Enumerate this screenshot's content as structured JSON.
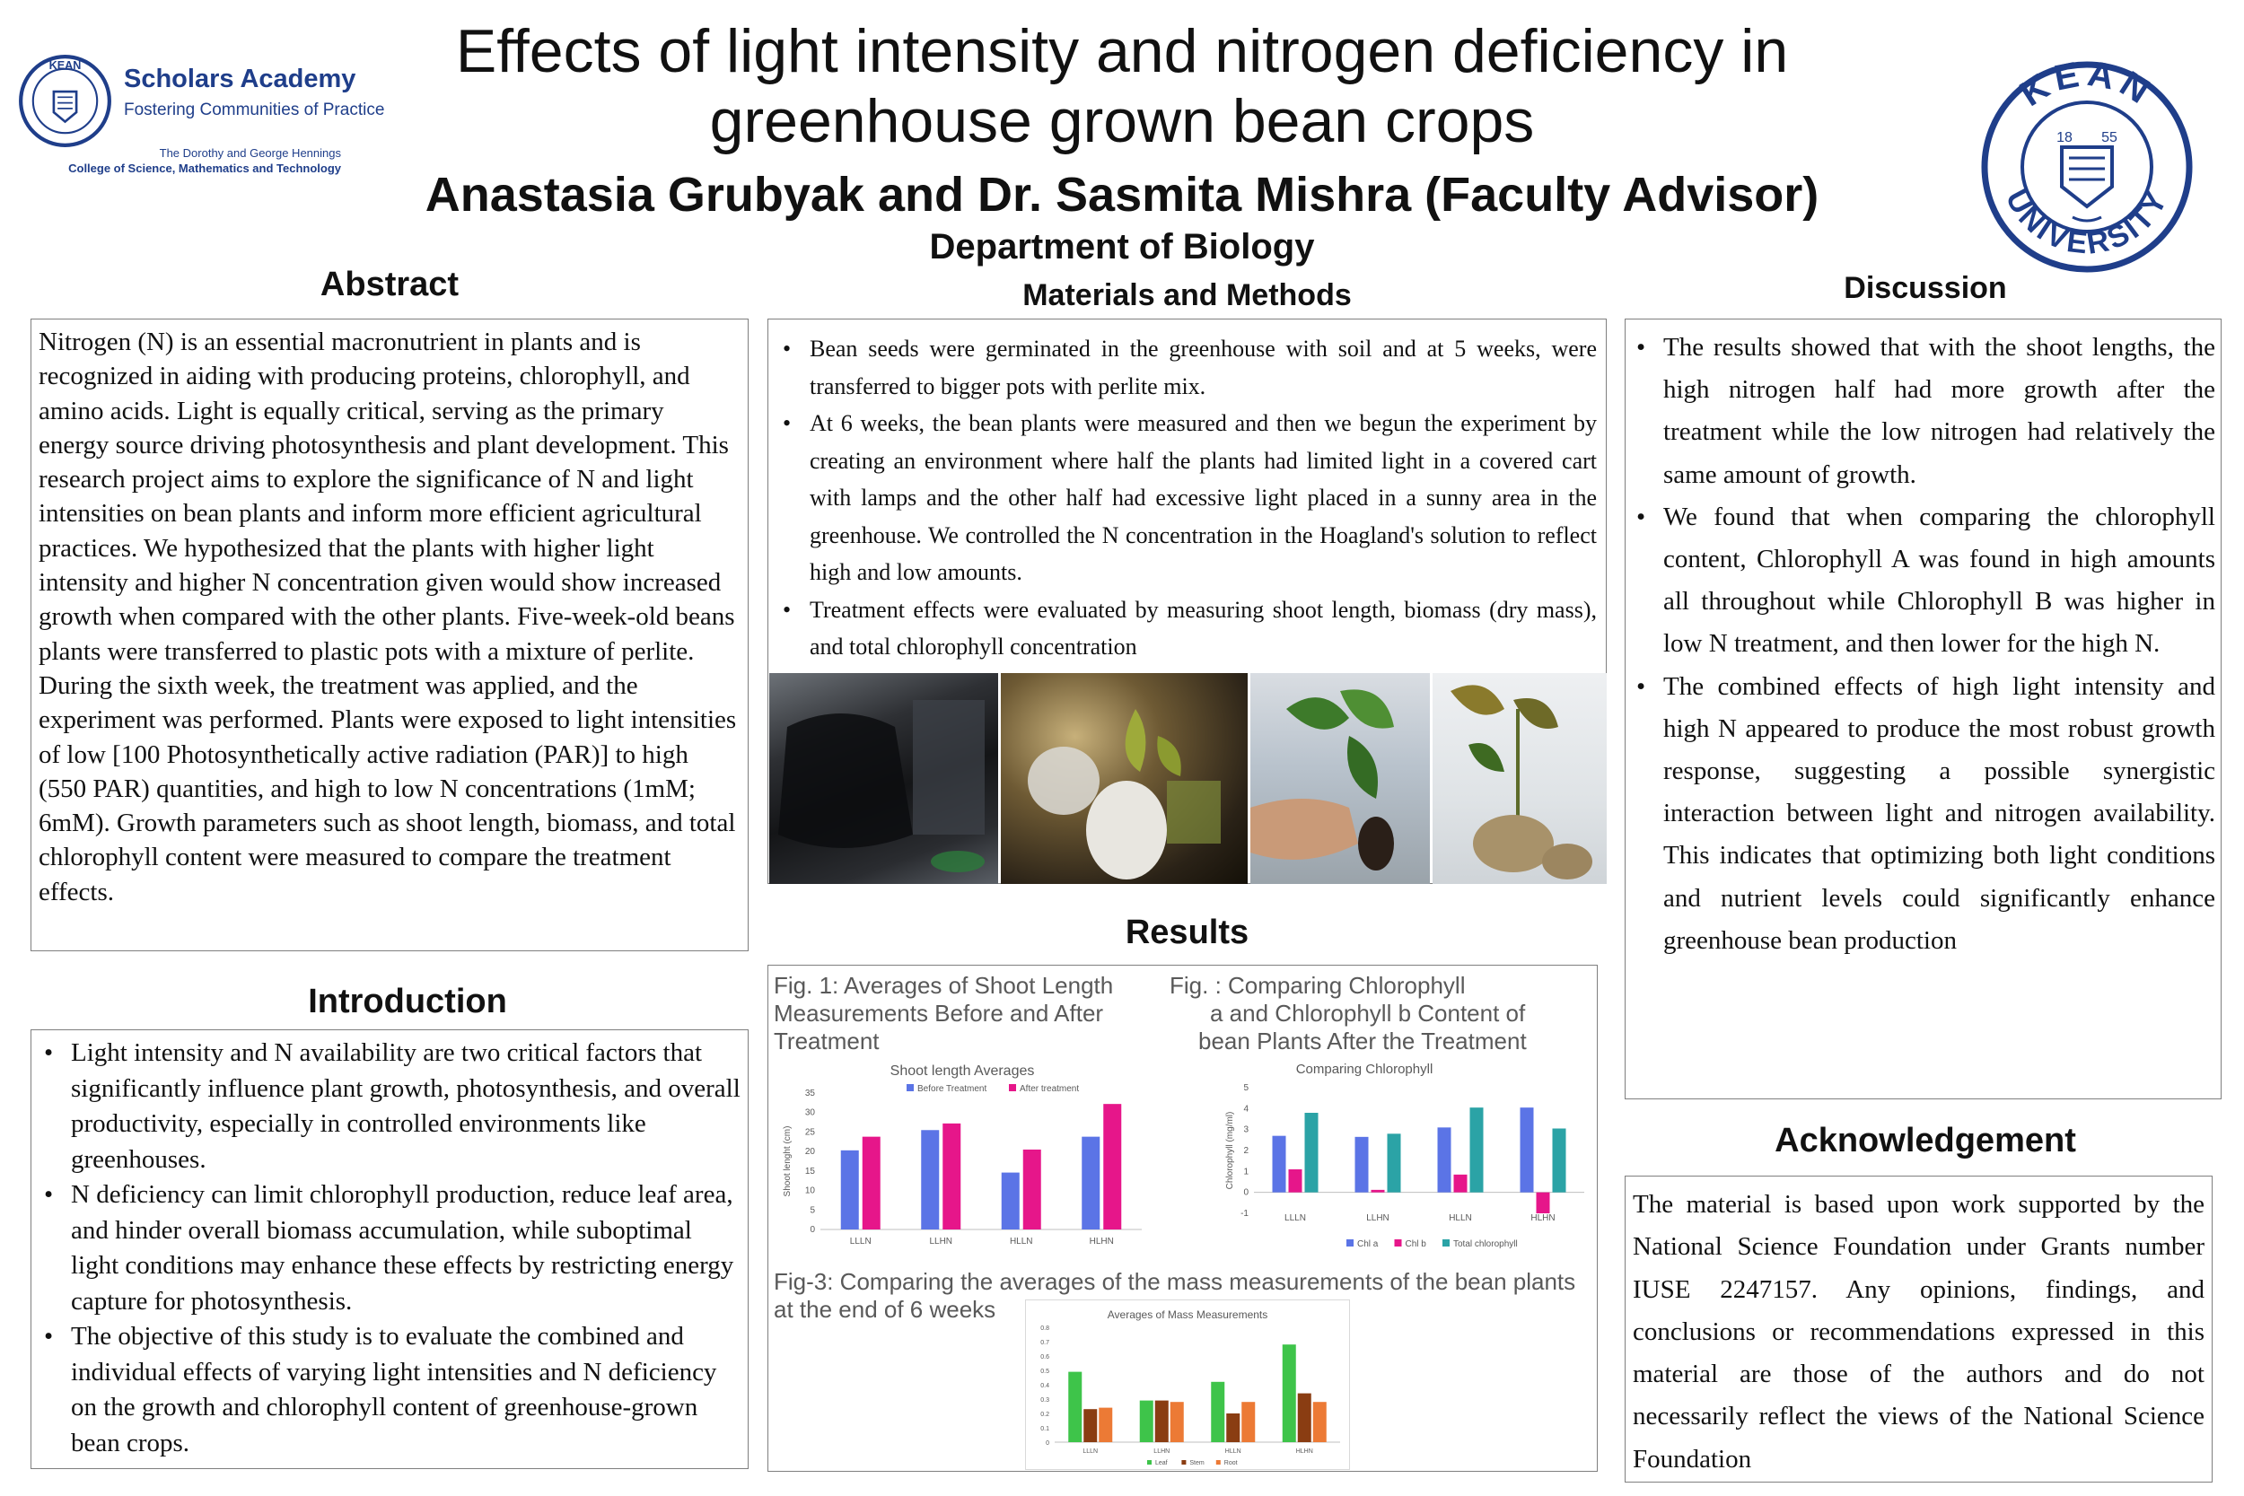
{
  "header": {
    "title_line1": "Effects of light intensity and nitrogen deficiency in",
    "title_line2": "greenhouse grown bean crops",
    "authors": "Anastasia Grubyak and Dr. Sasmita Mishra (Faculty Advisor)",
    "department": "Department of Biology"
  },
  "left_logo": {
    "name": "Scholars Academy",
    "tagline": "Fostering Communities of Practice",
    "college_line1": "The Dorothy and George Hennings",
    "college_line2": "College of Science, Mathematics and Technology",
    "seal_text": "KEAN UNIVERSITY"
  },
  "right_logo": {
    "text_top": "KEAN",
    "text_bottom": "UNIVERSITY",
    "year_left": "18",
    "year_right": "55"
  },
  "abstract": {
    "heading": "Abstract",
    "text": "Nitrogen (N) is an essential macronutrient in plants and is recognized in aiding with producing proteins, chlorophyll, and amino acids. Light is equally critical, serving as the primary energy source driving photosynthesis and plant development. This research project aims to explore the significance of N and light intensities on bean plants and inform more efficient agricultural practices. We hypothesized that the plants with higher light intensity and higher N concentration given would show increased growth when compared with the other plants. Five-week-old beans plants were transferred to plastic pots with a mixture of perlite. During the sixth week, the treatment was applied, and the experiment was performed. Plants were exposed to light intensities of low [100 Photosynthetically active radiation (PAR)] to high (550 PAR) quantities, and high to low N concentrations (1mM; 6mM). Growth parameters such as shoot length, biomass, and total chlorophyll content were measured to compare the treatment effects."
  },
  "introduction": {
    "heading": "Introduction",
    "bullets": [
      "Light intensity and N availability are two critical factors that significantly influence plant growth, photosynthesis, and overall productivity, especially in controlled environments like greenhouses.",
      "N deficiency can limit chlorophyll production, reduce leaf area, and hinder overall biomass accumulation, while suboptimal light conditions may enhance these effects by restricting energy capture for photosynthesis.",
      "The objective of this study is to evaluate the combined and individual effects of varying light intensities and N deficiency on the growth and chlorophyll content of greenhouse-grown bean crops."
    ]
  },
  "methods": {
    "heading": "Materials and Methods",
    "bullets": [
      "Bean seeds were germinated in the greenhouse with soil and at 5 weeks, were transferred to bigger pots with perlite mix.",
      "At 6 weeks, the bean plants were measured and then we begun the experiment by creating an environment where half the plants had limited light in a covered cart with lamps and the other half had excessive light placed in a sunny area in the greenhouse. We controlled the N concentration in the Hoagland's solution to reflect high and low amounts.",
      "Treatment effects were evaluated by measuring shoot length, biomass (dry mass), and total chlorophyll concentration"
    ]
  },
  "results": {
    "heading": "Results",
    "fig1_caption": "Fig. 1: Averages of Shoot Length Measurements Before and After Treatment",
    "fig2_caption_line1": "Fig. : Comparing Chlorophyll",
    "fig2_caption_line2": "a and Chlorophyll b Content of",
    "fig2_caption_line3": "bean Plants After the Treatment",
    "fig3_caption": "Fig-3: Comparing the averages of the mass measurements of the bean plants at the end of 6 weeks"
  },
  "discussion": {
    "heading": "Discussion",
    "bullets": [
      "The results showed that with the shoot lengths, the high nitrogen half had more growth after the treatment while the low nitrogen had relatively the same amount of growth.",
      "We found that when comparing the chlorophyll content, Chlorophyll A was found in high amounts all throughout while Chlorophyll B was higher in low N treatment, and then lower for the high N.",
      "The combined effects of high light intensity and high N appeared to produce the most robust growth response, suggesting a possible synergistic interaction between light and nitrogen availability. This indicates that optimizing both light conditions and nutrient levels could significantly enhance greenhouse bean production"
    ]
  },
  "acknowledgement": {
    "heading": "Acknowledgement",
    "text": "The material is based upon work supported by the National Science Foundation under Grants number IUSE 2247157. Any opinions, findings, and conclusions or recommendations expressed in this material are those of the authors and do not necessarily reflect the views of the National Science Foundation"
  },
  "chart_data": [
    {
      "type": "bar",
      "title": "Shoot length Averages",
      "xlabel": "",
      "ylabel": "Shoot lenght (cm)",
      "categories": [
        "LLLN",
        "LLHN",
        "HLLN",
        "HLHN"
      ],
      "series": [
        {
          "name": "Before Treatment",
          "color": "#5b74e6",
          "values": [
            20.3,
            25.5,
            14.6,
            23.8
          ]
        },
        {
          "name": "After treatment",
          "color": "#e6168a",
          "values": [
            23.8,
            27.2,
            20.5,
            32.2
          ]
        }
      ],
      "ylim": [
        0,
        35
      ],
      "yticks": [
        0,
        5,
        10,
        15,
        20,
        25,
        30,
        35
      ],
      "legend": "top",
      "grid": false
    },
    {
      "type": "bar",
      "title": "Comparing Chlorophyll",
      "xlabel": "",
      "ylabel": "Chlorophyll (mg/ml)",
      "categories": [
        "LLLN",
        "LLHN",
        "HLLN",
        "HLHN"
      ],
      "series": [
        {
          "name": "Chl a",
          "color": "#5b74e6",
          "values": [
            2.7,
            2.65,
            3.1,
            4.05
          ]
        },
        {
          "name": "Chl b",
          "color": "#e6168a",
          "values": [
            1.1,
            0.12,
            0.85,
            -1.0
          ]
        },
        {
          "name": "Total chlorophyll",
          "color": "#2ba3a6",
          "values": [
            3.8,
            2.8,
            4.05,
            3.05
          ]
        }
      ],
      "ylim": [
        -1,
        5
      ],
      "yticks": [
        -1,
        0,
        1,
        2,
        3,
        4,
        5
      ],
      "legend": "bottom",
      "grid": false
    },
    {
      "type": "bar",
      "title": "Averages of Mass Measurements",
      "xlabel": "",
      "ylabel": "",
      "categories": [
        "LLLN",
        "LLHN",
        "HLLN",
        "HLHN"
      ],
      "series": [
        {
          "name": "Leaf",
          "color": "#3ec44a",
          "values": [
            0.49,
            0.29,
            0.42,
            0.68
          ]
        },
        {
          "name": "Stem",
          "color": "#8a3d12",
          "values": [
            0.23,
            0.29,
            0.2,
            0.34
          ]
        },
        {
          "name": "Root",
          "color": "#ec7a35",
          "values": [
            0.24,
            0.28,
            0.28,
            0.28
          ]
        }
      ],
      "ylim": [
        0,
        0.8
      ],
      "yticks": [
        0,
        0.1,
        0.2,
        0.3,
        0.4,
        0.5,
        0.6,
        0.7,
        0.8
      ],
      "legend": "bottom",
      "grid": false
    }
  ]
}
